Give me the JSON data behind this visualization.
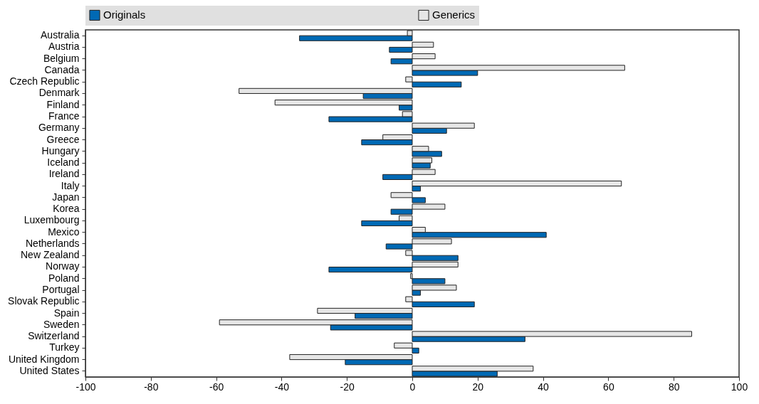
{
  "chart_data": {
    "type": "bar",
    "orientation": "horizontal",
    "legend": "top",
    "categories": [
      "Australia",
      "Austria",
      "Belgium",
      "Canada",
      "Czech Republic",
      "Denmark",
      "Finland",
      "France",
      "Germany",
      "Greece",
      "Hungary",
      "Iceland",
      "Ireland",
      "Italy",
      "Japan",
      "Korea",
      "Luxembourg",
      "Mexico",
      "Netherlands",
      "New Zealand",
      "Norway",
      "Poland",
      "Portugal",
      "Slovak Republic",
      "Spain",
      "Sweden",
      "Switzerland",
      "Turkey",
      "United Kingdom",
      "United States"
    ],
    "series": [
      {
        "name": "Originals",
        "color": "#0069b4",
        "values": [
          -34.5,
          -7,
          -6.5,
          20,
          15,
          -15,
          -4,
          -25.5,
          10.5,
          -15.5,
          9,
          5.5,
          -9,
          2.5,
          4,
          -6.5,
          -15.5,
          41,
          -8,
          14,
          -25.5,
          10,
          2.5,
          19,
          -17.5,
          -25,
          34.5,
          2,
          -20.5,
          26
        ]
      },
      {
        "name": "Generics",
        "color": "#e6e6e6",
        "values": [
          -1.5,
          6.5,
          7,
          65,
          -2,
          -53,
          -42,
          -3,
          19,
          -9,
          5,
          6,
          7,
          64,
          -6.5,
          10,
          -4,
          4,
          12,
          -2,
          14,
          -0.5,
          13.5,
          -2,
          -29,
          -59,
          85.5,
          -5.5,
          -37.5,
          37
        ]
      }
    ],
    "xlim": [
      -100,
      100
    ],
    "xticks": [
      -100,
      -80,
      -60,
      -40,
      -20,
      0,
      20,
      40,
      60,
      80,
      100
    ]
  }
}
